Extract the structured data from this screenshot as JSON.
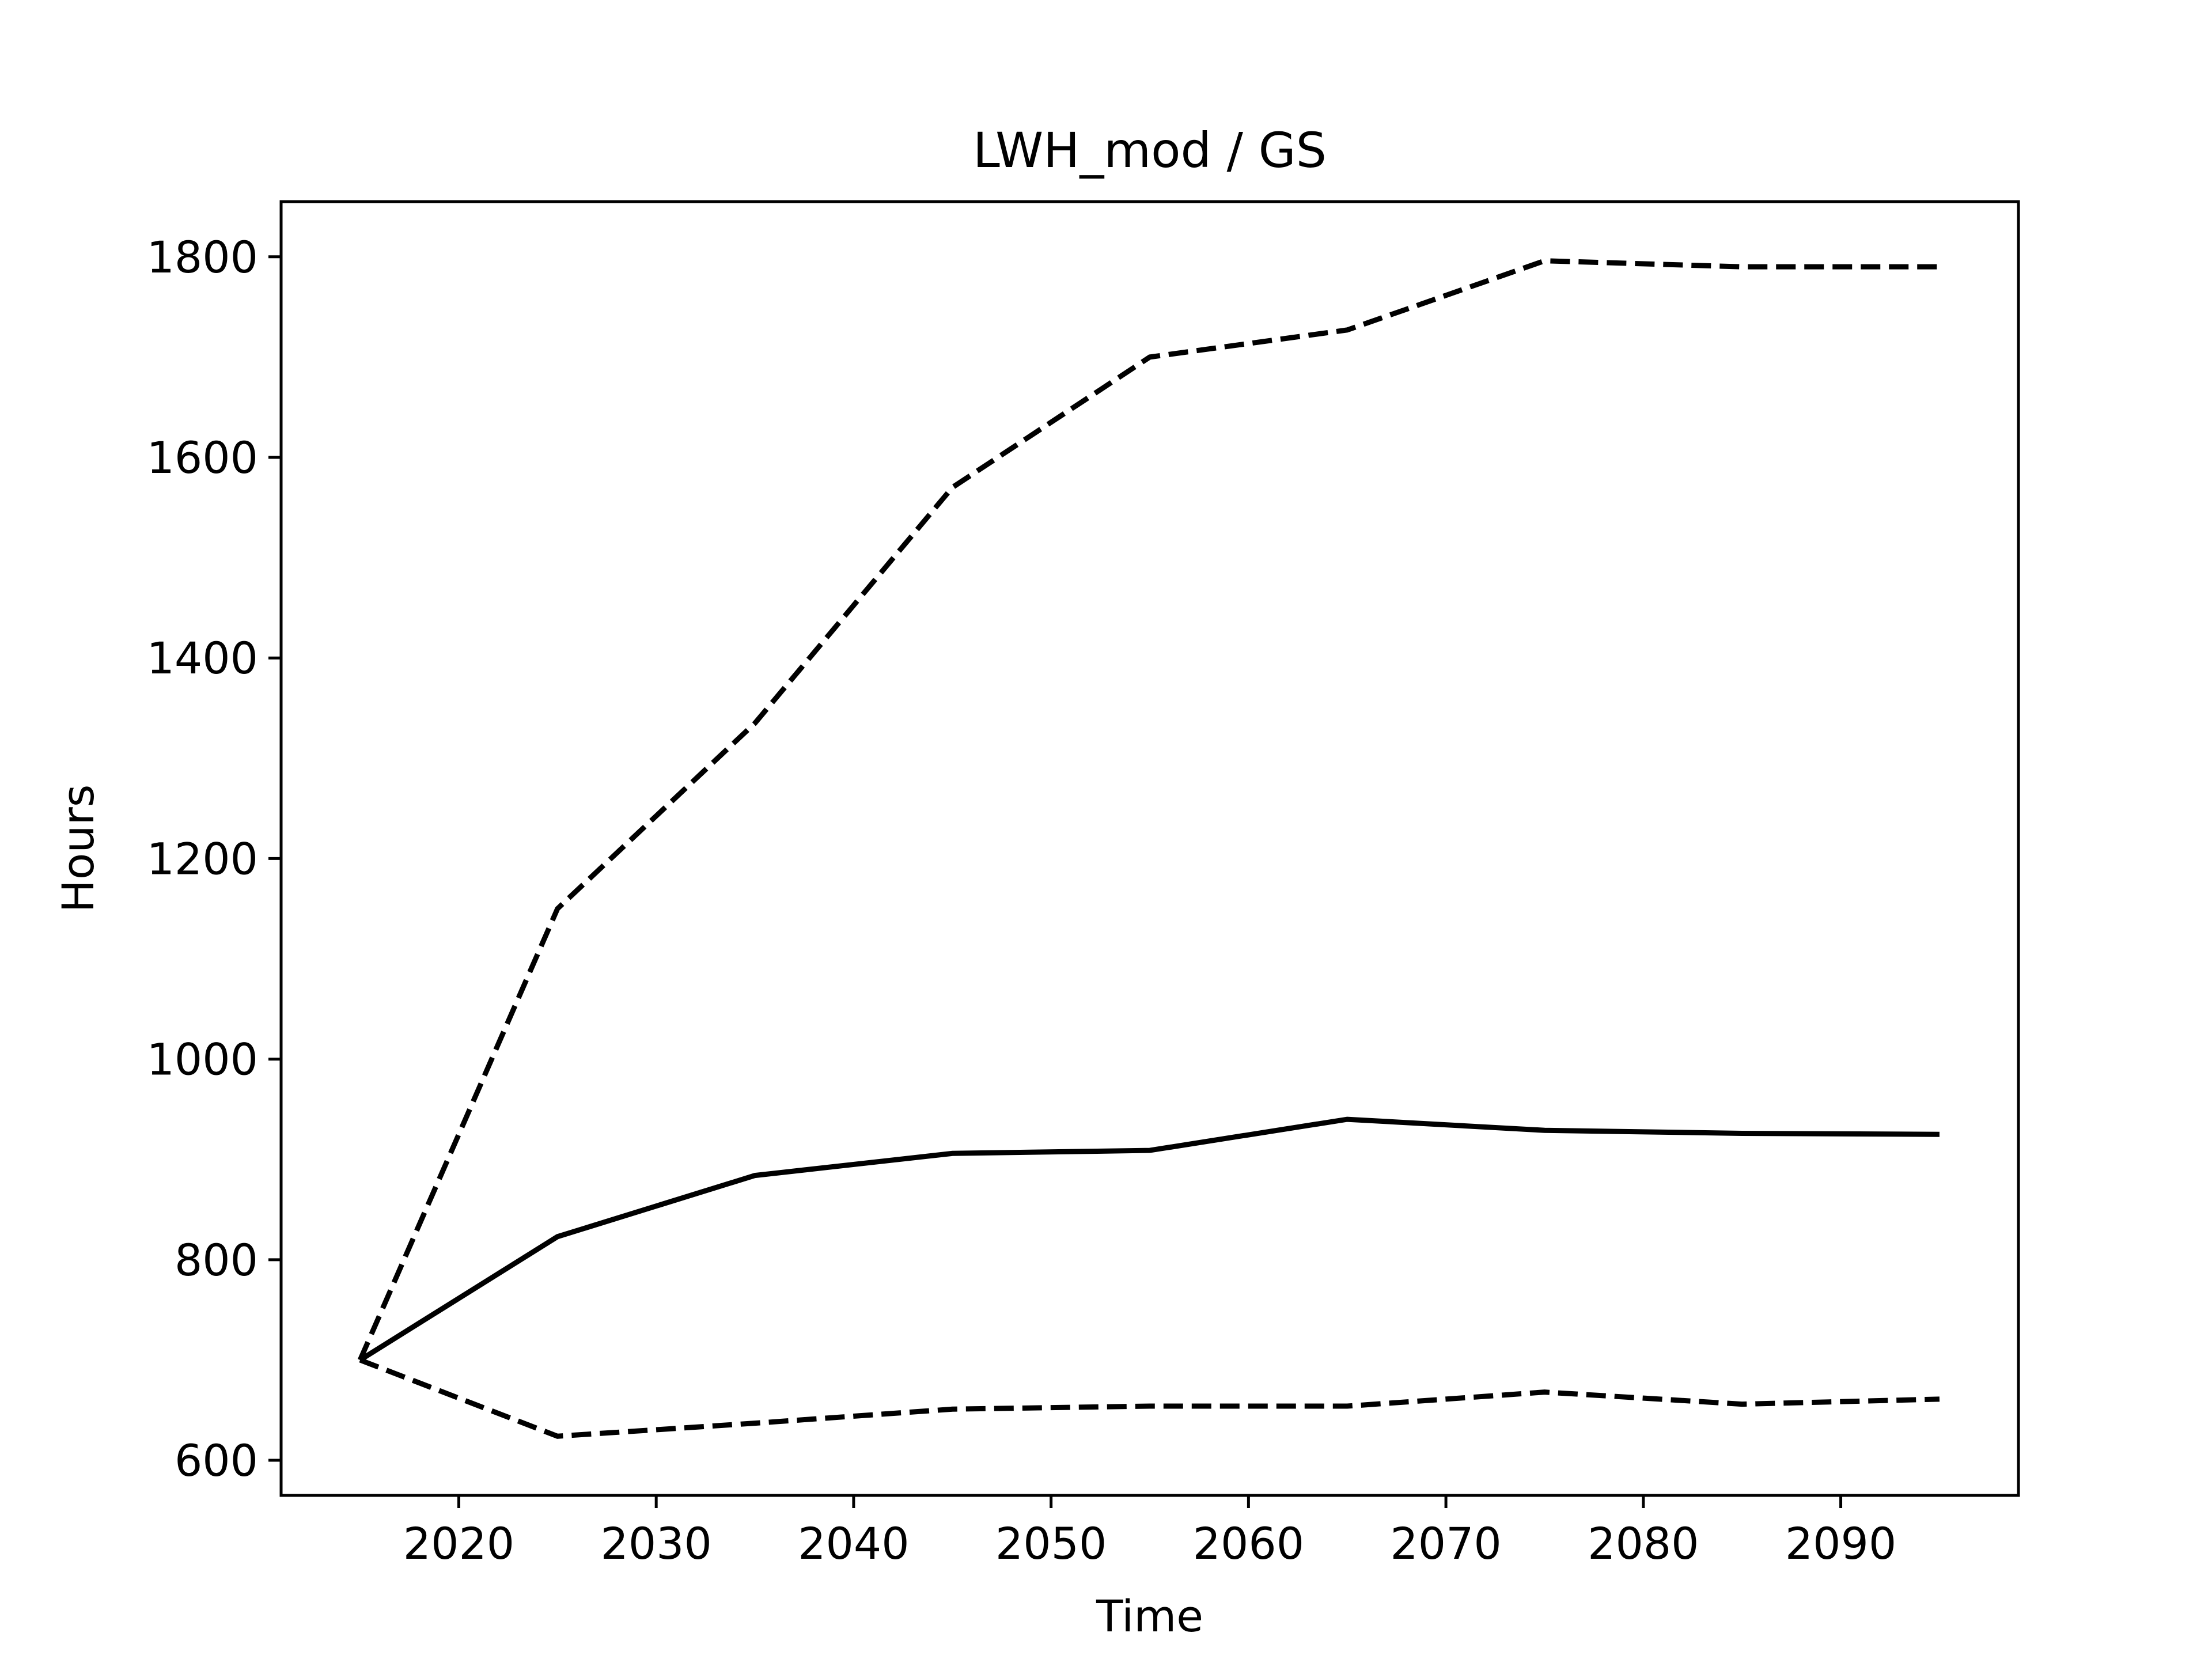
{
  "chart_data": {
    "type": "line",
    "title": "LWH_mod / GS",
    "xlabel": "Time",
    "ylabel": "Hours",
    "xlim": [
      2011,
      2099
    ],
    "ylim": [
      565,
      1855
    ],
    "x_ticks": [
      2020,
      2030,
      2040,
      2050,
      2060,
      2070,
      2080,
      2090
    ],
    "y_ticks": [
      600,
      800,
      1000,
      1200,
      1400,
      1600,
      1800
    ],
    "grid": false,
    "legend": "none",
    "colors": {
      "line": "#000000",
      "axes": "#000000",
      "background": "#ffffff"
    },
    "x": [
      2015,
      2025,
      2035,
      2045,
      2055,
      2065,
      2075,
      2085,
      2095
    ],
    "series": [
      {
        "style": "dashed",
        "values": [
          700,
          1150,
          1335,
          1570,
          1700,
          1727,
          1796,
          1790,
          1790
        ]
      },
      {
        "style": "solid",
        "values": [
          700,
          823,
          884,
          906,
          909,
          940,
          929,
          926,
          925
        ]
      },
      {
        "style": "dashed",
        "values": [
          700,
          624,
          637,
          651,
          654,
          654,
          668,
          656,
          661
        ]
      }
    ]
  }
}
